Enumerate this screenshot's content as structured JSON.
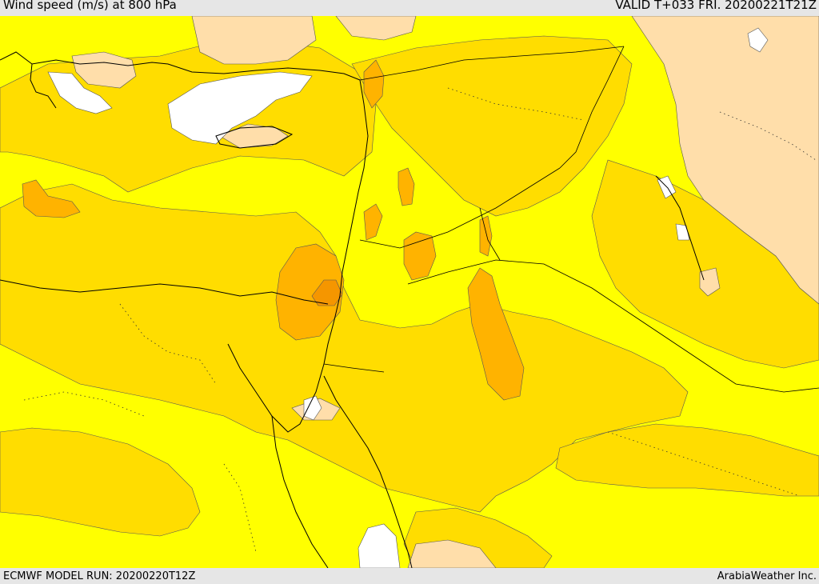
{
  "header": {
    "title": "Wind speed (m/s) at 800 hPa",
    "valid_time": "VALID T+033 FRI. 20200221T21Z"
  },
  "footer": {
    "model_run": "ECMWF MODEL RUN: 20200220T12Z",
    "credit": "ArabiaWeather Inc."
  },
  "colors": {
    "bright_yellow": "#ffff00",
    "gold": "#ffdd00",
    "amber": "#ffb300",
    "dark_amber": "#f59600",
    "tan": "#ffdeaa",
    "white": "#ffffff"
  }
}
